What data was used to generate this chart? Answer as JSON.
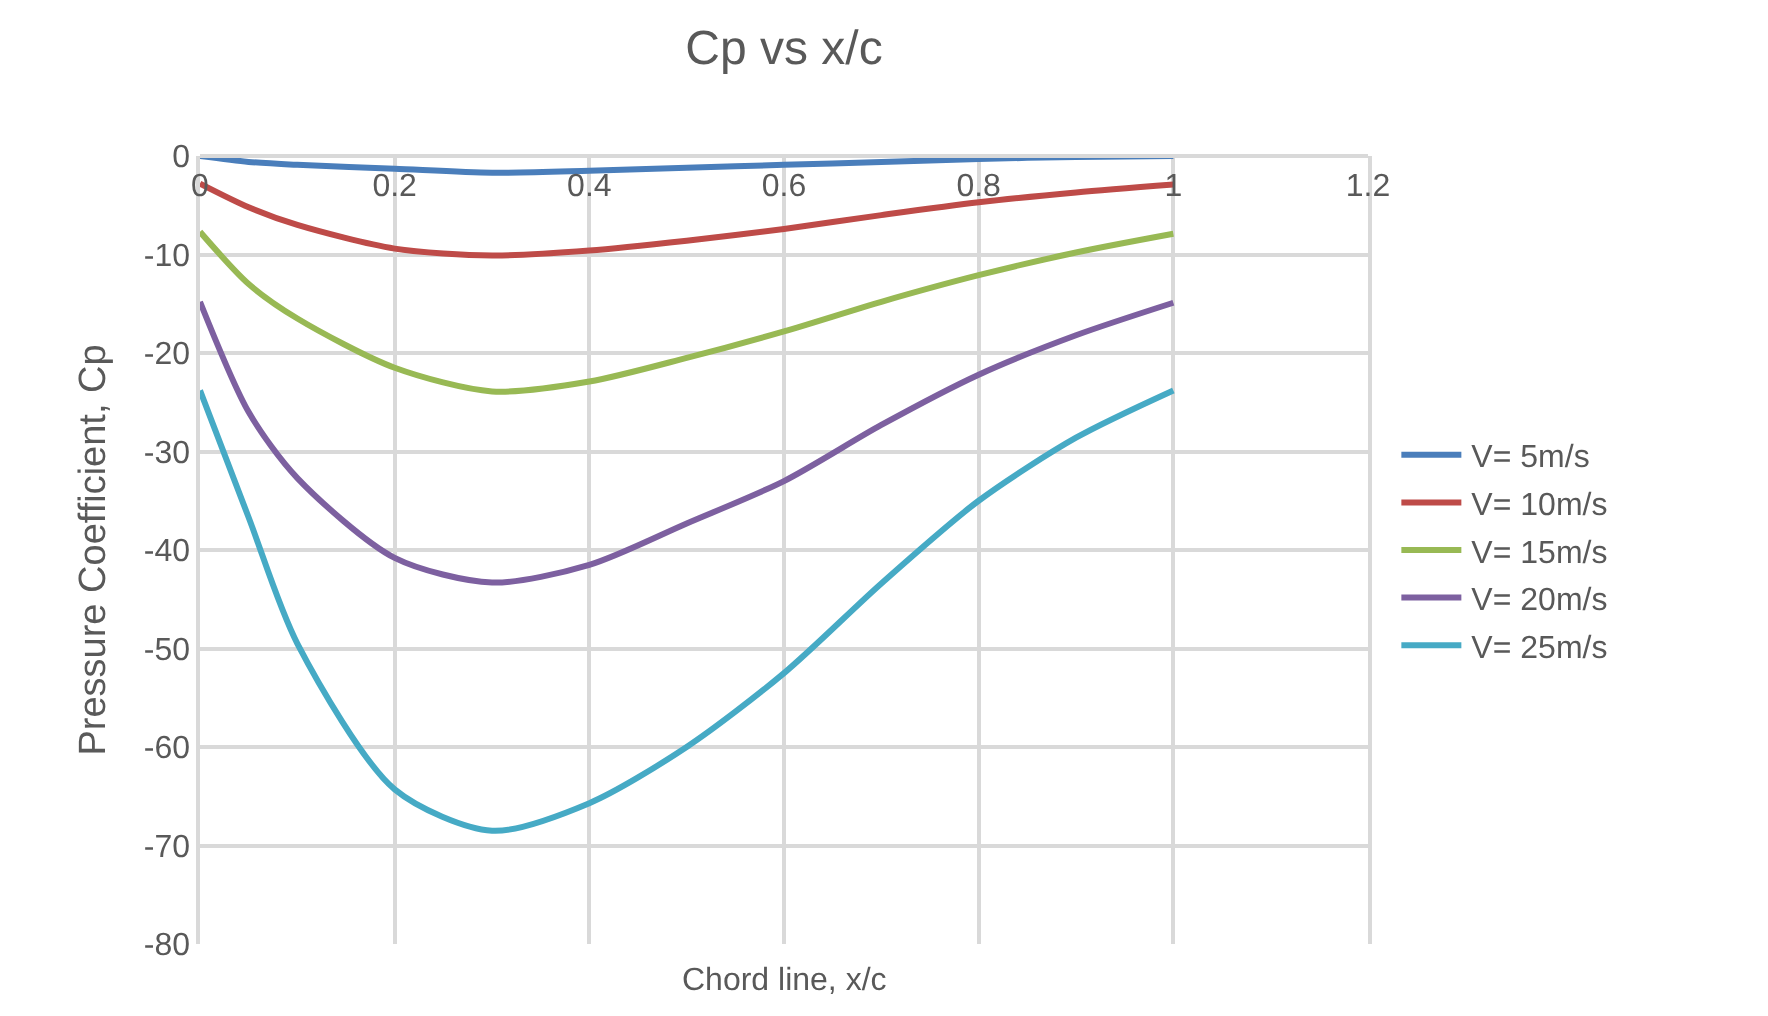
{
  "chart_data": {
    "type": "line",
    "title": "Cp vs x/c",
    "xlabel": "Chord line, x/c",
    "ylabel": "Pressure Coefficient, Cp",
    "x": [
      0,
      0.05,
      0.1,
      0.2,
      0.3,
      0.4,
      0.5,
      0.6,
      0.7,
      0.8,
      0.9,
      1
    ],
    "series": [
      {
        "name": "V= 5m/s",
        "color": "#4a7ebb",
        "values": [
          0,
          -0.6,
          -0.9,
          -1.3,
          -1.7,
          -1.5,
          -1.2,
          -0.9,
          -0.6,
          -0.3,
          -0.1,
          0
        ]
      },
      {
        "name": "V= 10m/s",
        "color": "#be4b48",
        "values": [
          -2.8,
          -5.2,
          -7,
          -9.4,
          -10.1,
          -9.6,
          -8.6,
          -7.4,
          -6,
          -4.7,
          -3.7,
          -2.9
        ]
      },
      {
        "name": "V= 15m/s",
        "color": "#98b954",
        "values": [
          -7.7,
          -13,
          -16.5,
          -21.5,
          -23.9,
          -22.9,
          -20.5,
          -17.8,
          -14.8,
          -12.1,
          -9.8,
          -7.9
        ]
      },
      {
        "name": "V= 20m/s",
        "color": "#7d60a0",
        "values": [
          -14.8,
          -26,
          -32.7,
          -40.8,
          -43.3,
          -41.5,
          -37.3,
          -33,
          -27.3,
          -22.2,
          -18.2,
          -14.9
        ]
      },
      {
        "name": "V= 25m/s",
        "color": "#46aac5",
        "values": [
          -23.8,
          -36.7,
          -49.5,
          -64.3,
          -68.5,
          -65.7,
          -60,
          -52.5,
          -43.4,
          -35,
          -28.6,
          -23.8
        ]
      }
    ],
    "xlim": [
      0,
      1.2
    ],
    "xticks": [
      0,
      0.2,
      0.4,
      0.6,
      0.8,
      1,
      1.2
    ],
    "ylim": [
      -80,
      0
    ],
    "yticks": [
      0,
      -10,
      -20,
      -30,
      -40,
      -50,
      -60,
      -70,
      -80
    ],
    "grid": true,
    "legend": "right",
    "marker": "none",
    "line_style": "solid"
  }
}
